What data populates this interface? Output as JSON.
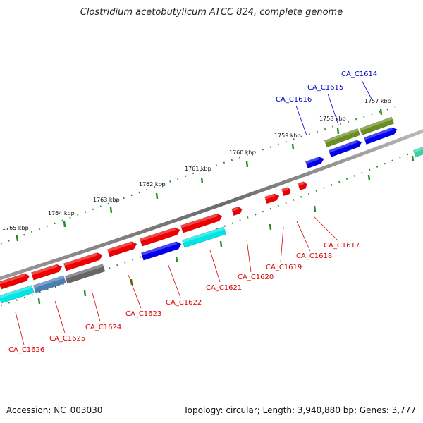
{
  "title": "Clostridium acetobutylicum ATCC 824, complete genome",
  "footer": {
    "accession": "Accession: NC_003030",
    "topology": "Topology: circular; Length: 3,940,880 bp; Genes: 3,777"
  },
  "colors": {
    "forward_cds": "#ee0000",
    "reverse_cds": "#0000ee",
    "rna": "#00e5e5",
    "olive": "#6b8e23",
    "gray": "#666666",
    "teal": "#2fd6a8",
    "label_forward": "#0000cc",
    "label_reverse": "#dd0000",
    "tick": "#228b22"
  },
  "ruler": [
    {
      "label": "1757 kbp"
    },
    {
      "label": "1758 kbp"
    },
    {
      "label": "1759 kbp"
    },
    {
      "label": "1760 kbp"
    },
    {
      "label": "1761 kbp"
    },
    {
      "label": "1762 kbp"
    },
    {
      "label": "1763 kbp"
    },
    {
      "label": "1764 kbp"
    },
    {
      "label": "1765 kbp"
    }
  ],
  "gene_labels_top": [
    {
      "name": "CA_C1614"
    },
    {
      "name": "CA_C1615"
    },
    {
      "name": "CA_C1616"
    }
  ],
  "gene_labels_bottom": [
    {
      "name": "CA_C1617"
    },
    {
      "name": "CA_C1618"
    },
    {
      "name": "CA_C1619"
    },
    {
      "name": "CA_C1620"
    },
    {
      "name": "CA_C1621"
    },
    {
      "name": "CA_C1622"
    },
    {
      "name": "CA_C1623"
    },
    {
      "name": "CA_C1624"
    },
    {
      "name": "CA_C1625"
    },
    {
      "name": "CA_C1626"
    }
  ]
}
